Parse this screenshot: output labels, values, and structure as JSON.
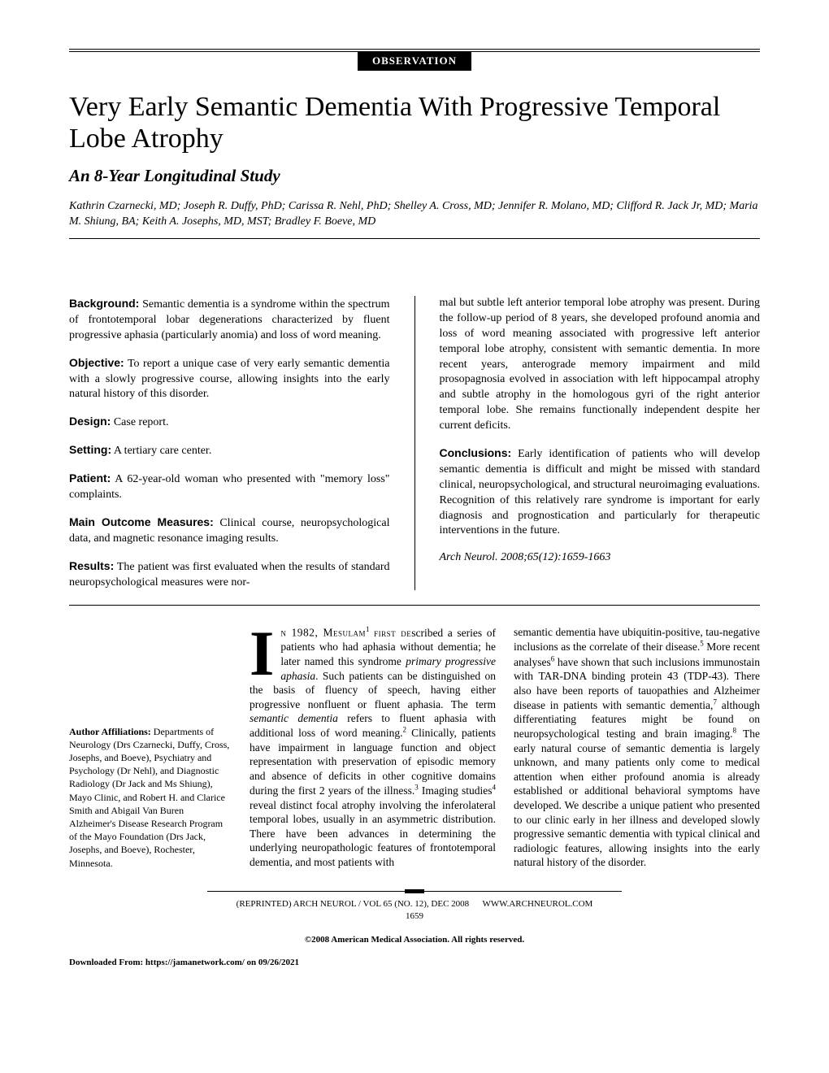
{
  "header": {
    "badge": "OBSERVATION",
    "title": "Very Early Semantic Dementia With Progressive Temporal Lobe Atrophy",
    "subtitle": "An 8-Year Longitudinal Study",
    "authors": "Kathrin Czarnecki, MD; Joseph R. Duffy, PhD; Carissa R. Nehl, PhD; Shelley A. Cross, MD; Jennifer R. Molano, MD; Clifford R. Jack Jr, MD; Maria M. Shiung, BA; Keith A. Josephs, MD, MST; Bradley F. Boeve, MD"
  },
  "abstract": {
    "background": {
      "label": "Background:",
      "text": " Semantic dementia is a syndrome within the spectrum of frontotemporal lobar degenerations characterized by fluent progressive aphasia (particularly anomia) and loss of word meaning."
    },
    "objective": {
      "label": "Objective:",
      "text": " To report a unique case of very early semantic dementia with a slowly progressive course, allowing insights into the early natural history of this disorder."
    },
    "design": {
      "label": "Design:",
      "text": " Case report."
    },
    "setting": {
      "label": "Setting:",
      "text": " A tertiary care center."
    },
    "patient": {
      "label": "Patient:",
      "text": " A 62-year-old woman who presented with \"memory loss\" complaints."
    },
    "outcome": {
      "label": "Main Outcome Measures:",
      "text": " Clinical course, neuropsychological data, and magnetic resonance imaging results."
    },
    "results": {
      "label": "Results:",
      "text": " The patient was first evaluated when the results of standard neuropsychological measures were nor-"
    },
    "results_cont": "mal but subtle left anterior temporal lobe atrophy was present. During the follow-up period of 8 years, she developed profound anomia and loss of word meaning associated with progressive left anterior temporal lobe atrophy, consistent with semantic dementia. In more recent years, anterograde memory impairment and mild prosopagnosia evolved in association with left hippocampal atrophy and subtle atrophy in the homologous gyri of the right anterior temporal lobe. She remains functionally independent despite her current deficits.",
    "conclusions": {
      "label": "Conclusions:",
      "text": " Early identification of patients who will develop semantic dementia is difficult and might be missed with standard clinical, neuropsychological, and structural neuroimaging evaluations. Recognition of this relatively rare syndrome is important for early diagnosis and prognostication and particularly for therapeutic interventions in the future."
    },
    "citation": "Arch Neurol. 2008;65(12):1659-1663"
  },
  "affiliations": {
    "heading": "Author Affiliations:",
    "text": " Departments of Neurology (Drs Czarnecki, Duffy, Cross, Josephs, and Boeve), Psychiatry and Psychology (Dr Nehl), and Diagnostic Radiology (Dr Jack and Ms Shiung), Mayo Clinic, and Robert H. and Clarice Smith and Abigail Van Buren Alzheimer's Disease Research Program of the Mayo Foundation (Drs Jack, Josephs, and Boeve), Rochester, Minnesota."
  },
  "body": {
    "dropcap": "I",
    "col1_opening": "n 1982, Mesulam",
    "col1_rest": " first described a series of patients who had aphasia without dementia; he later named this syndrome primary progressive aphasia. Such patients can be distinguished on the basis of fluency of speech, having either progressive nonfluent or fluent aphasia. The term semantic dementia refers to fluent aphasia with additional loss of word meaning.2 Clinically, patients have impairment in language function and object representation with preservation of episodic memory and absence of deficits in other cognitive domains during the first 2 years of the illness.3 Imaging studies4 reveal distinct focal atrophy involving the inferolateral temporal lobes, usually in an asymmetric distribution. There have been advances in determining the underlying neuropathologic features of frontotemporal dementia, and most patients with",
    "col2": "semantic dementia have ubiquitin-positive, tau-negative inclusions as the correlate of their disease.5 More recent analyses6 have shown that such inclusions immunostain with TAR-DNA binding protein 43 (TDP-43). There also have been reports of tauopathies and Alzheimer disease in patients with semantic dementia,7 although differentiating features might be found on neuropsychological testing and brain imaging.8 The early natural course of semantic dementia is largely unknown, and many patients only come to medical attention when either profound anomia is already established or additional behavioral symptoms have developed. We describe a unique patient who presented to our clinic early in her illness and developed slowly progressive semantic dementia with typical clinical and radiologic features, allowing insights into the early natural history of the disorder."
  },
  "footer": {
    "reprint": "(REPRINTED) ARCH NEUROL / VOL 65 (NO. 12), DEC 2008",
    "url": "WWW.ARCHNEUROL.COM",
    "page": "1659",
    "copyright": "©2008 American Medical Association. All rights reserved.",
    "download": "Downloaded From: https://jamanetwork.com/ on 09/26/2021"
  }
}
